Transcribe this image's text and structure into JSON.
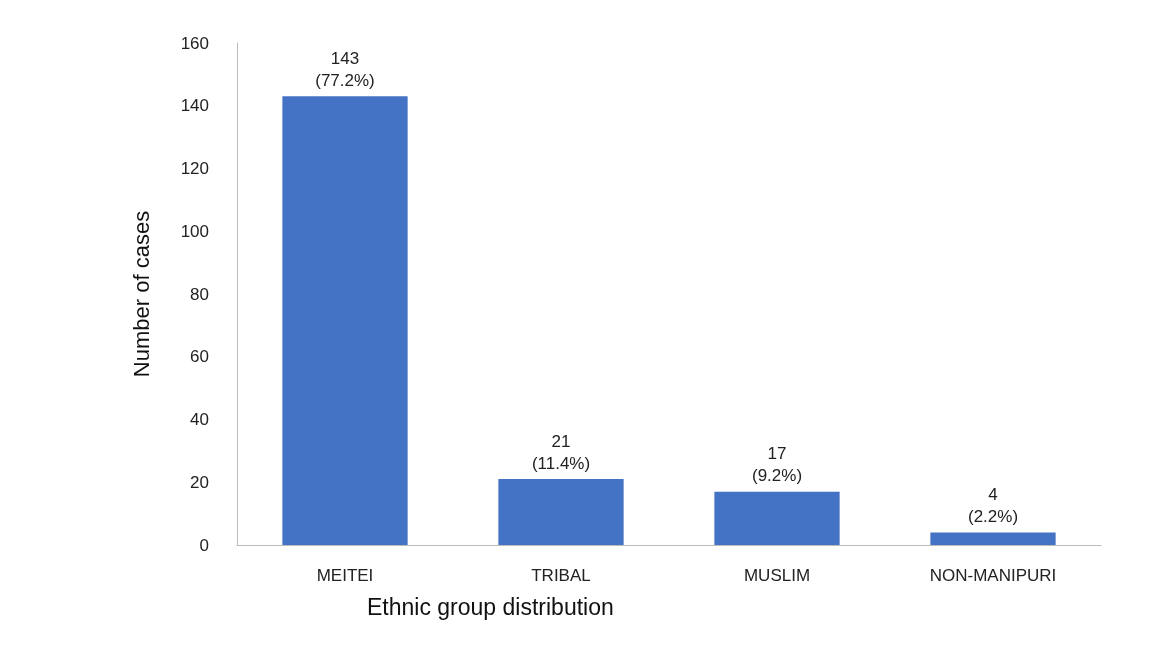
{
  "chart_data": {
    "type": "bar",
    "xlabel": "Ethnic group distribution",
    "ylabel": "Number of cases",
    "categories": [
      "MEITEI",
      "TRIBAL",
      "MUSLIM",
      "NON-MANIPURI"
    ],
    "values": [
      143,
      21,
      17,
      4
    ],
    "color": "#4472c4",
    "value_labels": [
      "143\n(77.2%)",
      "21\n(11.4%)",
      "17\n(9.2%)",
      "4\n(2.2%)"
    ],
    "ylim": [
      0,
      160
    ],
    "yticks": [
      0,
      20,
      40,
      60,
      80,
      100,
      120,
      140,
      160
    ],
    "grid": false
  }
}
